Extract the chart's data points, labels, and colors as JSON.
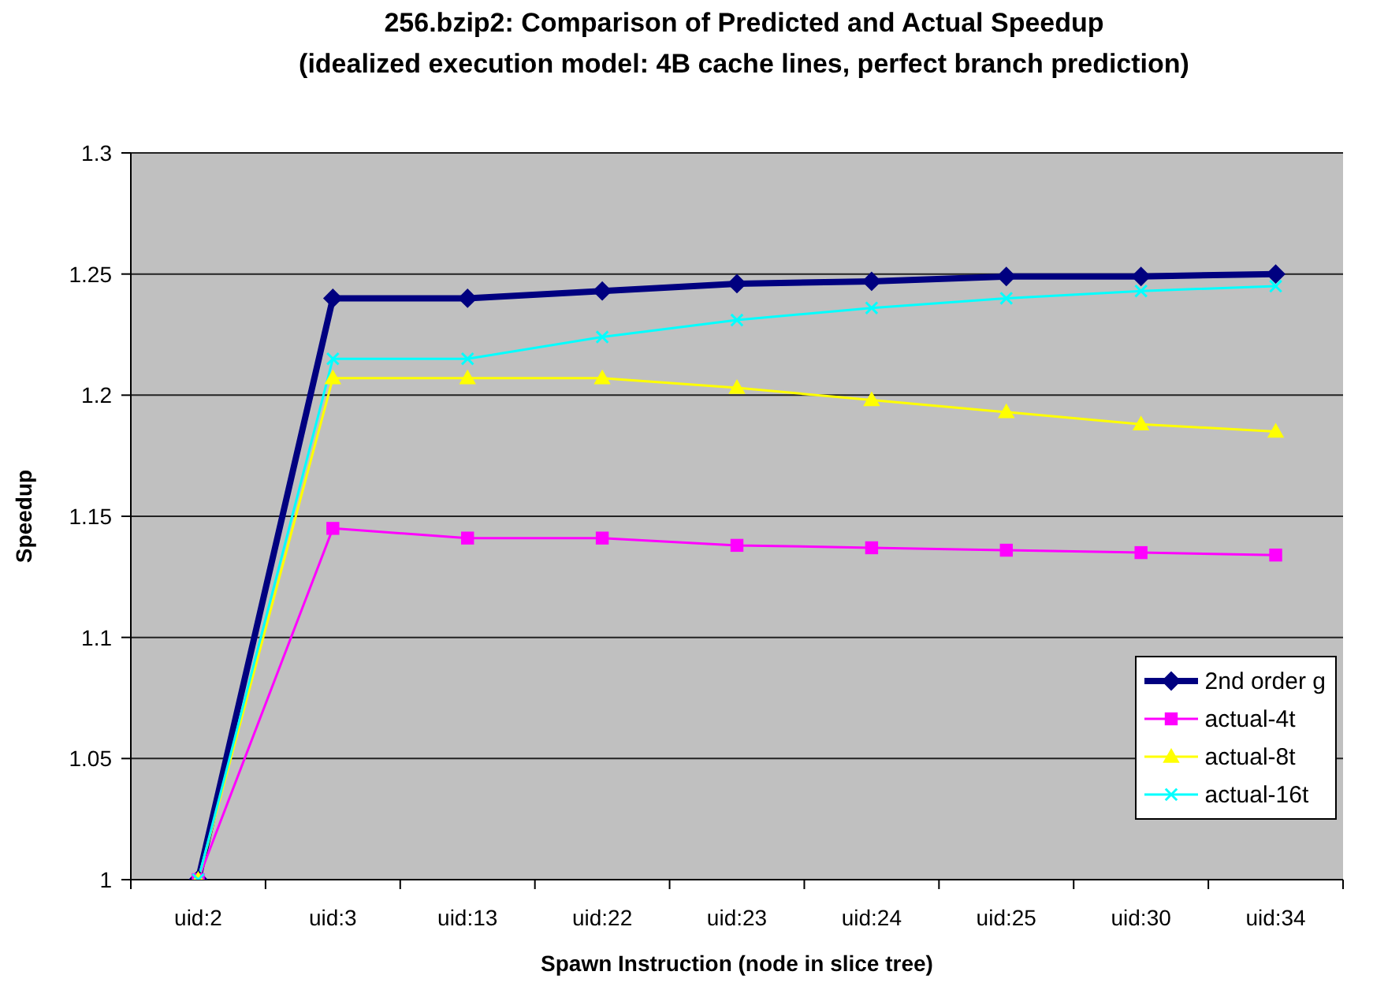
{
  "chart_data": {
    "type": "line",
    "title": "256.bzip2: Comparison of Predicted and Actual Speedup",
    "subtitle": "(idealized execution model: 4B cache lines, perfect branch prediction)",
    "xlabel": "Spawn Instruction (node in slice tree)",
    "ylabel": "Speedup",
    "categories": [
      "uid:2",
      "uid:3",
      "uid:13",
      "uid:22",
      "uid:23",
      "uid:24",
      "uid:25",
      "uid:30",
      "uid:34"
    ],
    "series": [
      {
        "name": "2nd order g",
        "color": "#000080",
        "marker": "diamond",
        "values": [
          1,
          1.24,
          1.24,
          1.243,
          1.246,
          1.247,
          1.249,
          1.249,
          1.25
        ]
      },
      {
        "name": "actual-4t",
        "color": "#ff00ff",
        "marker": "square",
        "values": [
          1,
          1.145,
          1.141,
          1.141,
          1.138,
          1.137,
          1.136,
          1.135,
          1.134
        ]
      },
      {
        "name": "actual-8t",
        "color": "#ffff00",
        "marker": "triangle",
        "values": [
          1,
          1.207,
          1.207,
          1.207,
          1.203,
          1.198,
          1.193,
          1.188,
          1.185
        ]
      },
      {
        "name": "actual-16t",
        "color": "#00ffff",
        "marker": "cross",
        "values": [
          1,
          1.215,
          1.215,
          1.224,
          1.231,
          1.236,
          1.24,
          1.243,
          1.245
        ]
      }
    ],
    "ylim": [
      1,
      1.3
    ],
    "yticks": [
      1,
      1.05,
      1.1,
      1.15,
      1.2,
      1.25,
      1.3
    ],
    "grid": "y",
    "legend": "bottom right",
    "line_style": "solid"
  }
}
